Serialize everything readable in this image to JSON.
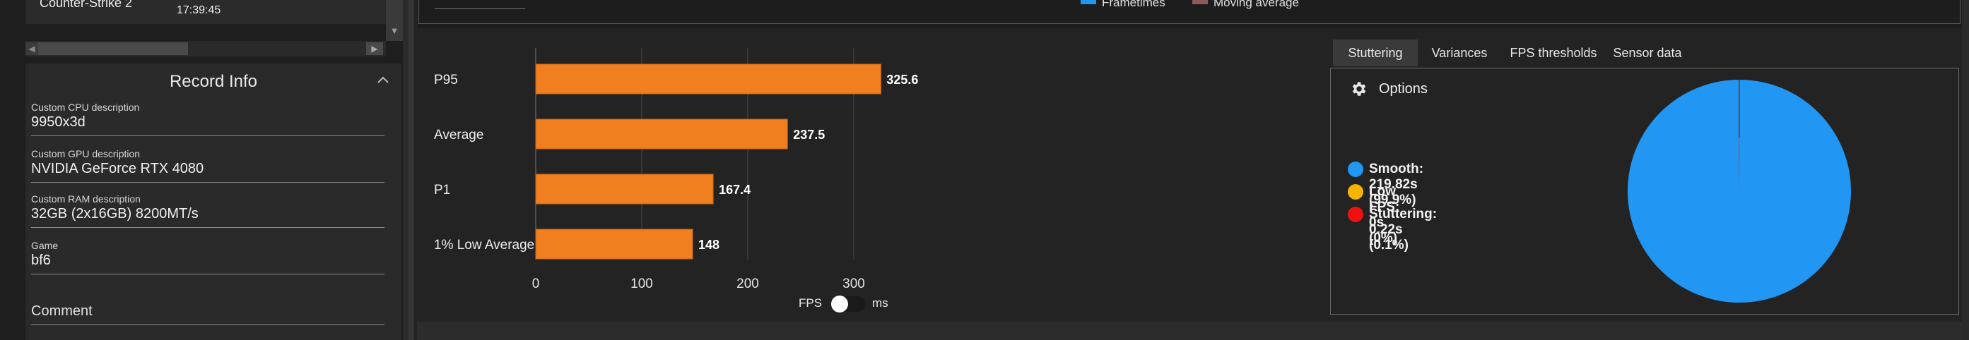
{
  "session": {
    "game": "Counter-Strike 2",
    "time": "17:39:45"
  },
  "record_info": {
    "title": "Record Info",
    "fields": [
      {
        "label": "Custom CPU description",
        "value": "9950x3d"
      },
      {
        "label": "Custom GPU description",
        "value": "NVIDIA GeForce RTX 4080"
      },
      {
        "label": "Custom RAM description",
        "value": "32GB (2x16GB) 8200MT/s"
      },
      {
        "label": "Game",
        "value": "bf6"
      }
    ],
    "comment_placeholder": "Comment"
  },
  "top_legend": [
    {
      "label": "Frametimes",
      "color": "#2196f3"
    },
    {
      "label": "Moving average",
      "color": "#8b5a5a"
    }
  ],
  "chart_data": {
    "type": "bar",
    "orientation": "horizontal",
    "categories": [
      "P95",
      "Average",
      "P1",
      "1% Low Average"
    ],
    "values": [
      325.6,
      237.5,
      167.4,
      148
    ],
    "value_labels": [
      "325.6",
      "237.5",
      "167.4",
      "148"
    ],
    "xticks": [
      0,
      100,
      200,
      300
    ],
    "xlim": [
      0,
      353
    ],
    "bar_color": "#f07f20",
    "grid": true
  },
  "unit_toggle": {
    "left_label": "FPS",
    "right_label": "ms",
    "selected": "FPS"
  },
  "tabs": [
    {
      "label": "Stuttering",
      "active": true
    },
    {
      "label": "Variances",
      "active": false
    },
    {
      "label": "FPS thresholds",
      "active": false
    },
    {
      "label": "Sensor data",
      "active": false
    }
  ],
  "options": {
    "label": "Options",
    "icon": "gear-icon"
  },
  "stutter_legend": [
    {
      "label": "Smooth:  219.82s (99.9%)",
      "color": "#2196f3"
    },
    {
      "label": "Low FPS:  0s (0%)",
      "color": "#f5b400"
    },
    {
      "label": "Stuttering:  0.22s (0.1%)",
      "color": "#f01010"
    }
  ],
  "pie_data": {
    "type": "pie",
    "slices": [
      {
        "label": "Smooth",
        "value": 219.82,
        "color": "#2196f3"
      },
      {
        "label": "Low FPS",
        "value": 0,
        "color": "#f5b400"
      },
      {
        "label": "Stuttering",
        "value": 0.22,
        "color": "#f01010"
      }
    ]
  }
}
